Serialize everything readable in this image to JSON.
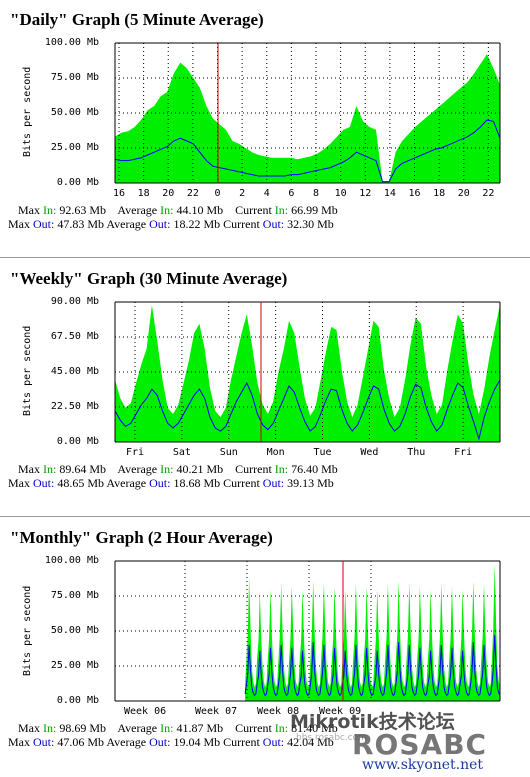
{
  "chart_data": [
    {
      "type": "area",
      "title": "\"Daily\" Graph (5 Minute Average)",
      "ylabel": "Bits per second",
      "ylim": [
        0,
        100
      ],
      "yticks": [
        "100.00 Mb",
        "75.00 Mb",
        "50.00 Mb",
        "25.00 Mb",
        "0.00 Mb"
      ],
      "xticks": [
        "16",
        "18",
        "20",
        "22",
        "0",
        "2",
        "4",
        "6",
        "8",
        "10",
        "12",
        "14",
        "16",
        "18",
        "20",
        "22"
      ],
      "series": [
        {
          "name": "In",
          "color": "#00ee00",
          "values": [
            33,
            36,
            37,
            40,
            45,
            52,
            55,
            62,
            65,
            78,
            86,
            82,
            75,
            68,
            55,
            46,
            42,
            38,
            30,
            28,
            25,
            22,
            20,
            19,
            18,
            18,
            18,
            18,
            17,
            18,
            19,
            21,
            24,
            28,
            33,
            38,
            40,
            55,
            44,
            40,
            38,
            1,
            1,
            22,
            30,
            35,
            40,
            44,
            48,
            52,
            56,
            60,
            64,
            68,
            72,
            78,
            85,
            92,
            82,
            70
          ]
        },
        {
          "name": "Out",
          "color": "#0000ff",
          "values": [
            17,
            16,
            16,
            17,
            18,
            20,
            22,
            24,
            26,
            30,
            32,
            30,
            28,
            22,
            16,
            12,
            11,
            10,
            9,
            8,
            7,
            6,
            5,
            5,
            5,
            5,
            5,
            6,
            6,
            7,
            8,
            9,
            10,
            11,
            13,
            15,
            18,
            22,
            20,
            18,
            16,
            1,
            1,
            10,
            14,
            16,
            18,
            20,
            22,
            24,
            25,
            27,
            29,
            31,
            33,
            36,
            40,
            45,
            44,
            32
          ]
        }
      ],
      "stats": {
        "max_in": "92.63 Mb",
        "avg_in": "44.10 Mb",
        "cur_in": "66.99 Mb",
        "max_out": "47.83 Mb",
        "avg_out": "18.22 Mb",
        "cur_out": "32.30 Mb"
      }
    },
    {
      "type": "area",
      "title": "\"Weekly\" Graph (30 Minute Average)",
      "ylabel": "Bits per second",
      "ylim": [
        0,
        90
      ],
      "yticks": [
        "90.00 Mb",
        "67.50 Mb",
        "45.00 Mb",
        "22.50 Mb",
        "0.00 Mb"
      ],
      "xticks": [
        "Fri",
        "Sat",
        "Sun",
        "Mon",
        "Tue",
        "Wed",
        "Thu",
        "Fri"
      ],
      "series": [
        {
          "name": "In",
          "color": "#00ee00",
          "values": [
            40,
            28,
            22,
            25,
            38,
            50,
            60,
            88,
            65,
            40,
            22,
            18,
            24,
            38,
            52,
            70,
            76,
            60,
            35,
            20,
            16,
            22,
            40,
            55,
            70,
            82,
            62,
            38,
            24,
            18,
            26,
            45,
            60,
            78,
            70,
            48,
            28,
            17,
            22,
            40,
            58,
            74,
            72,
            46,
            26,
            16,
            24,
            42,
            60,
            78,
            74,
            46,
            28,
            16,
            22,
            40,
            62,
            80,
            76,
            48,
            30,
            18,
            24,
            46,
            65,
            82,
            76,
            50,
            30,
            18,
            34,
            55,
            72,
            88
          ]
        },
        {
          "name": "Out",
          "color": "#0000ff",
          "values": [
            20,
            14,
            10,
            12,
            18,
            24,
            28,
            34,
            30,
            20,
            12,
            9,
            12,
            18,
            24,
            30,
            34,
            28,
            16,
            9,
            7,
            10,
            18,
            26,
            32,
            38,
            30,
            18,
            11,
            8,
            12,
            20,
            28,
            36,
            32,
            22,
            13,
            7,
            10,
            18,
            27,
            34,
            33,
            21,
            12,
            7,
            11,
            19,
            28,
            36,
            34,
            21,
            12,
            7,
            10,
            18,
            29,
            37,
            35,
            22,
            13,
            7,
            11,
            21,
            30,
            38,
            35,
            23,
            13,
            2,
            16,
            26,
            34,
            40
          ]
        }
      ],
      "stats": {
        "max_in": "89.64 Mb",
        "avg_in": "40.21 Mb",
        "cur_in": "76.40 Mb",
        "max_out": "48.65 Mb",
        "avg_out": "18.68 Mb",
        "cur_out": "39.13 Mb"
      }
    },
    {
      "type": "area",
      "title": "\"Monthly\" Graph (2 Hour Average)",
      "ylabel": "Bits per second",
      "ylim": [
        0,
        100
      ],
      "yticks": [
        "100.00 Mb",
        "75.00 Mb",
        "50.00 Mb",
        "25.00 Mb",
        "0.00 Mb"
      ],
      "xticks": [
        "Week 06",
        "Week 07",
        "Week 08",
        "Week 09"
      ],
      "data_start_fraction": 0.338,
      "cycles": 24,
      "series": [
        {
          "name": "In",
          "color": "#00ee00",
          "peak_values": [
            88,
            78,
            80,
            84,
            82,
            80,
            86,
            84,
            82,
            80,
            84,
            82,
            80,
            84,
            86,
            84,
            82,
            80,
            84,
            82,
            80,
            86,
            84,
            98
          ]
        },
        {
          "name": "Out",
          "color": "#0000ff",
          "peak_values": [
            40,
            36,
            38,
            40,
            38,
            36,
            42,
            40,
            38,
            36,
            40,
            38,
            36,
            40,
            42,
            40,
            38,
            36,
            40,
            38,
            36,
            42,
            40,
            47
          ]
        }
      ],
      "stats": {
        "max_in": "98.69 Mb",
        "avg_in": "41.87 Mb",
        "cur_in": "81.40 Mb",
        "max_out": "47.06 Mb",
        "avg_out": "19.04 Mb",
        "cur_out": "42.04 Mb"
      }
    }
  ],
  "labels": {
    "max": "Max",
    "average": "Average",
    "current": "Current",
    "in": "In:",
    "out": "Out:"
  },
  "watermark": {
    "line1": "Mikrotik技术论坛",
    "line2": "ROSABC",
    "line3": "www.skyonet.net",
    "line4": "bbs.rosabc.com"
  }
}
